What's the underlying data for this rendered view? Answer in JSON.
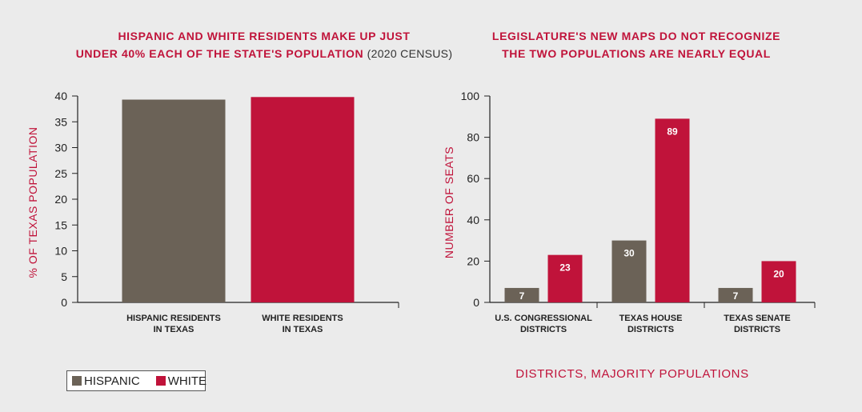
{
  "colors": {
    "hispanic": "#6b6257",
    "white": "#c0133a",
    "accent": "#c0133a",
    "text": "#222222"
  },
  "legend": {
    "hispanic_label": "HISPANIC",
    "white_label": "WHITE"
  },
  "chart_data": [
    {
      "type": "bar",
      "title_bold": "HISPANIC AND WHITE RESIDENTS MAKE UP JUST UNDER 40% EACH OF THE STATE'S POPULATION",
      "title_light": "(2020 CENSUS)",
      "title_lines": [
        "HISPANIC AND WHITE RESIDENTS MAKE UP JUST",
        "UNDER 40% EACH OF THE STATE'S POPULATION"
      ],
      "ylabel": "% OF TEXAS POPULATION",
      "ylim": [
        0,
        40
      ],
      "yticks": [
        0,
        5,
        10,
        15,
        20,
        25,
        30,
        35,
        40
      ],
      "categories": [
        [
          "HISPANIC RESIDENTS",
          "IN TEXAS"
        ],
        [
          "WHITE RESIDENTS",
          "IN TEXAS"
        ]
      ],
      "values": [
        39.3,
        39.8
      ]
    },
    {
      "type": "bar",
      "title_lines": [
        "LEGISLATURE'S NEW MAPS DO NOT RECOGNIZE",
        "THE TWO POPULATIONS ARE NEARLY EQUAL"
      ],
      "ylabel": "NUMBER OF SEATS",
      "xlabel": "DISTRICTS, MAJORITY POPULATIONS",
      "ylim": [
        0,
        100
      ],
      "yticks": [
        0,
        20,
        40,
        60,
        80,
        100
      ],
      "categories": [
        [
          "U.S. CONGRESSIONAL",
          "DISTRICTS"
        ],
        [
          "TEXAS HOUSE",
          "DISTRICTS"
        ],
        [
          "TEXAS SENATE",
          "DISTRICTS"
        ]
      ],
      "series": [
        {
          "name": "HISPANIC",
          "values": [
            7,
            30,
            7
          ]
        },
        {
          "name": "WHITE",
          "values": [
            23,
            89,
            20
          ]
        }
      ]
    }
  ]
}
